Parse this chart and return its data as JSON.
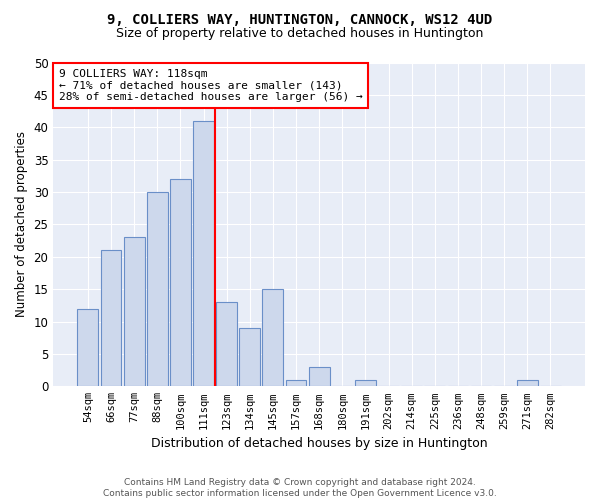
{
  "title": "9, COLLIERS WAY, HUNTINGTON, CANNOCK, WS12 4UD",
  "subtitle": "Size of property relative to detached houses in Huntington",
  "xlabel": "Distribution of detached houses by size in Huntington",
  "ylabel": "Number of detached properties",
  "categories": [
    "54sqm",
    "66sqm",
    "77sqm",
    "88sqm",
    "100sqm",
    "111sqm",
    "123sqm",
    "134sqm",
    "145sqm",
    "157sqm",
    "168sqm",
    "180sqm",
    "191sqm",
    "202sqm",
    "214sqm",
    "225sqm",
    "236sqm",
    "248sqm",
    "259sqm",
    "271sqm",
    "282sqm"
  ],
  "values": [
    12,
    21,
    23,
    30,
    32,
    41,
    13,
    9,
    15,
    1,
    3,
    0,
    1,
    0,
    0,
    0,
    0,
    0,
    0,
    1,
    0
  ],
  "bar_color": "#cdd8ec",
  "bar_edge_color": "#6a8fc8",
  "vline_color": "red",
  "ylim": [
    0,
    50
  ],
  "yticks": [
    0,
    5,
    10,
    15,
    20,
    25,
    30,
    35,
    40,
    45,
    50
  ],
  "annotation_title": "9 COLLIERS WAY: 118sqm",
  "annotation_line1": "← 71% of detached houses are smaller (143)",
  "annotation_line2": "28% of semi-detached houses are larger (56) →",
  "footer1": "Contains HM Land Registry data © Crown copyright and database right 2024.",
  "footer2": "Contains public sector information licensed under the Open Government Licence v3.0.",
  "bg_color": "#ffffff",
  "plot_bg_color": "#e8edf7",
  "grid_color": "#ffffff"
}
